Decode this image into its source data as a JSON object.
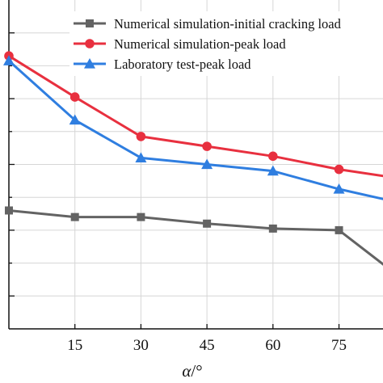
{
  "chart_data": {
    "type": "line",
    "x": [
      0,
      15,
      30,
      45,
      60,
      75,
      90
    ],
    "x_tick_labels": [
      "15",
      "30",
      "45",
      "60",
      "75"
    ],
    "xlabel_symbol": "α",
    "xlabel_unit": "/°",
    "xlim": [
      0,
      85
    ],
    "ylim": [
      0,
      10
    ],
    "grid": true,
    "legend_position": "top-right",
    "series": [
      {
        "name": "Numerical simulation-initial cracking load",
        "color": "#636363",
        "marker": "square",
        "y": [
          3.6,
          3.4,
          3.4,
          3.2,
          3.05,
          3.0,
          1.45
        ]
      },
      {
        "name": "Numerical simulation-peak load",
        "color": "#e8303f",
        "marker": "circle",
        "y": [
          8.3,
          7.05,
          5.85,
          5.55,
          5.25,
          4.85,
          4.55
        ]
      },
      {
        "name": "Laboratory test-peak load",
        "color": "#2f7ee0",
        "marker": "triangle",
        "y": [
          8.15,
          6.35,
          5.2,
          5.0,
          4.8,
          4.25,
          3.8
        ]
      }
    ]
  }
}
